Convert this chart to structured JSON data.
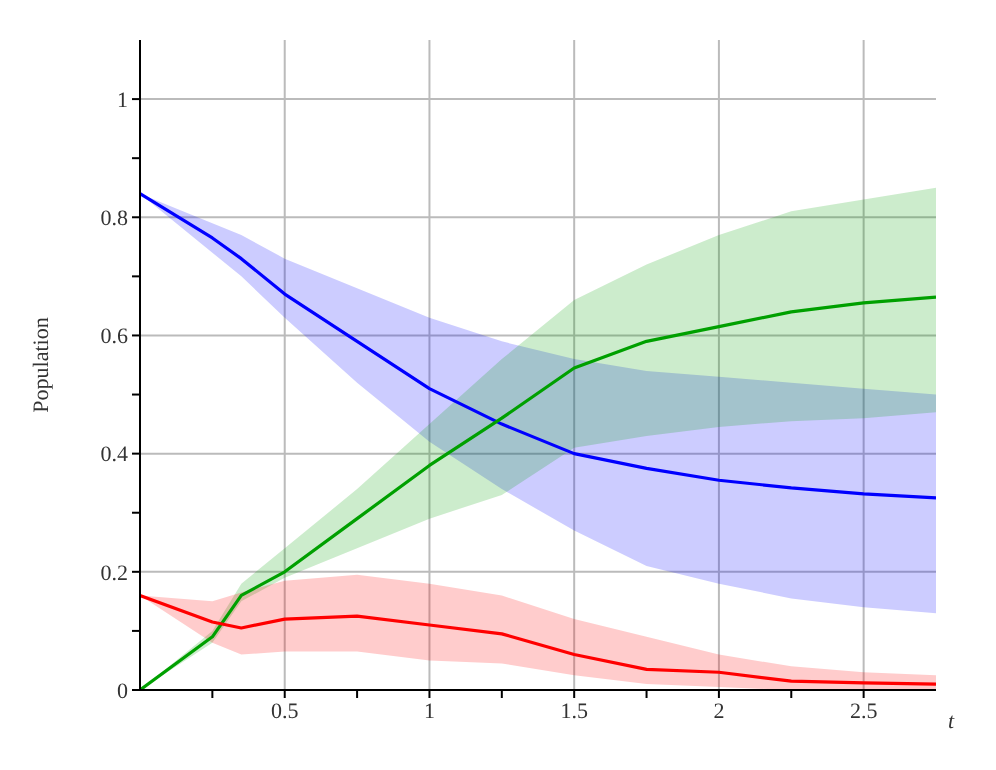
{
  "chart_data": {
    "type": "line",
    "xlabel": "t",
    "ylabel": "Population",
    "x": [
      0,
      0.25,
      0.35,
      0.5,
      0.75,
      1,
      1.25,
      1.5,
      1.75,
      2,
      2.25,
      2.5,
      2.75
    ],
    "series": [
      {
        "color": "#0000ff",
        "values": [
          0.84,
          0.765,
          0.73,
          0.67,
          0.59,
          0.51,
          0.45,
          0.4,
          0.375,
          0.355,
          0.342,
          0.332,
          0.325
        ],
        "lower": [
          0.84,
          0.74,
          0.7,
          0.63,
          0.52,
          0.42,
          0.34,
          0.27,
          0.21,
          0.18,
          0.155,
          0.14,
          0.13
        ],
        "upper": [
          0.84,
          0.79,
          0.77,
          0.73,
          0.68,
          0.63,
          0.59,
          0.56,
          0.54,
          0.53,
          0.52,
          0.51,
          0.5
        ]
      },
      {
        "color": "#00a000",
        "values": [
          0,
          0.09,
          0.16,
          0.2,
          0.29,
          0.38,
          0.46,
          0.545,
          0.59,
          0.615,
          0.64,
          0.655,
          0.665
        ],
        "lower": [
          0,
          0.08,
          0.15,
          0.19,
          0.24,
          0.29,
          0.33,
          0.41,
          0.43,
          0.445,
          0.455,
          0.46,
          0.47
        ],
        "upper": [
          0,
          0.1,
          0.18,
          0.24,
          0.34,
          0.45,
          0.56,
          0.66,
          0.72,
          0.77,
          0.81,
          0.83,
          0.85
        ]
      },
      {
        "color": "#ff0000",
        "values": [
          0.16,
          0.115,
          0.105,
          0.12,
          0.125,
          0.11,
          0.095,
          0.06,
          0.035,
          0.03,
          0.015,
          0.012,
          0.01
        ],
        "lower": [
          0.16,
          0.08,
          0.06,
          0.065,
          0.065,
          0.05,
          0.045,
          0.025,
          0.01,
          0.005,
          0,
          0,
          0
        ],
        "upper": [
          0.16,
          0.15,
          0.165,
          0.185,
          0.195,
          0.18,
          0.16,
          0.12,
          0.09,
          0.06,
          0.04,
          0.03,
          0.025
        ]
      }
    ],
    "xlim": [
      0,
      2.75
    ],
    "ylim": [
      0,
      1.1
    ],
    "xticks": [
      {
        "value": 0.25,
        "label": null
      },
      0.5,
      {
        "value": 0.75,
        "label": null
      },
      1,
      {
        "value": 1.25,
        "label": null
      },
      1.5,
      {
        "value": 1.75,
        "label": null
      },
      2,
      {
        "value": 2.25,
        "label": null
      },
      2.5
    ],
    "yticks": [
      0,
      {
        "value": 0.1,
        "label": null
      },
      0.2,
      {
        "value": 0.3,
        "label": null
      },
      0.4,
      {
        "value": 0.5,
        "label": null
      },
      0.6,
      {
        "value": 0.7,
        "label": null
      },
      0.8,
      {
        "value": 0.9,
        "label": null
      },
      1
    ],
    "grid": true,
    "marker": "none",
    "line_style": "solid"
  }
}
